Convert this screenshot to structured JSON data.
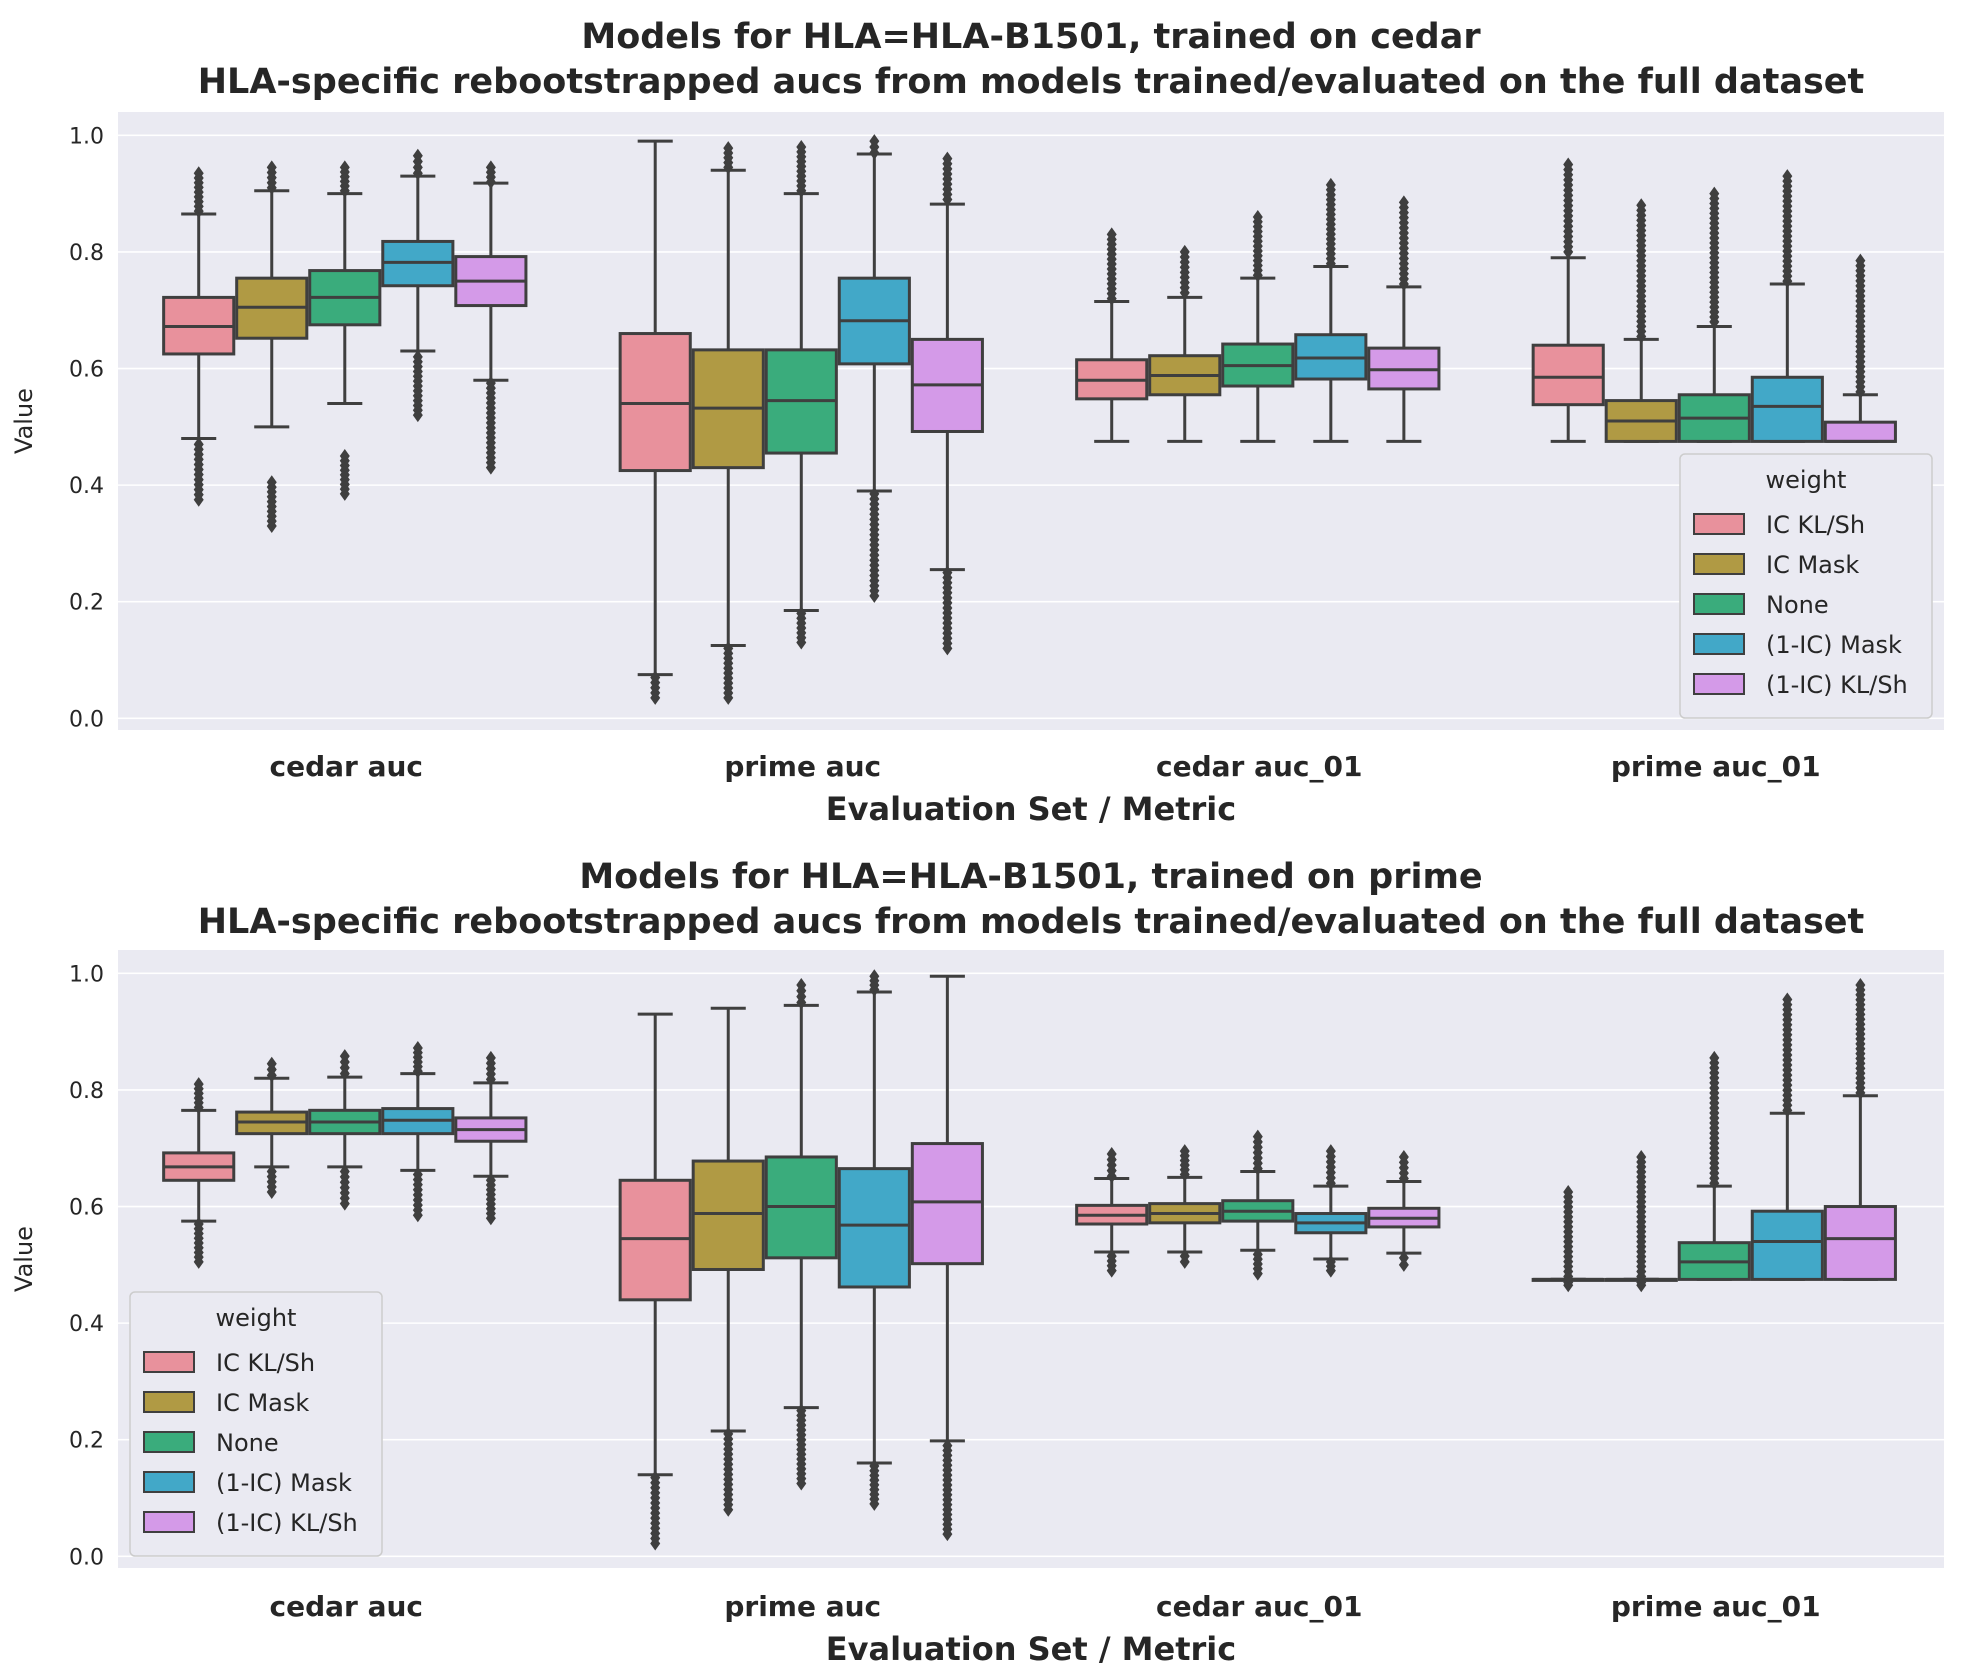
{
  "colors": {
    "background": "#eaeaf2",
    "grid": "#ffffff",
    "line": "#3f3f3f",
    "series": [
      "#e8919c",
      "#b09a44",
      "#3aac7c",
      "#42a8c8",
      "#d49ae8"
    ]
  },
  "chart_data": [
    {
      "type": "box",
      "title": "Models for HLA=HLA-B1501, trained on cedar",
      "subtitle": "HLA-specific rebootstrapped aucs from models trained/evaluated on the full dataset",
      "xlabel": "Evaluation Set / Metric",
      "ylabel": "Value",
      "ylim": [
        -0.02,
        1.04
      ],
      "yticks": [
        "0.0",
        "0.2",
        "0.4",
        "0.6",
        "0.8",
        "1.0"
      ],
      "grid": true,
      "legend": {
        "title": "weight",
        "position": "lower-right"
      },
      "categories": [
        "cedar auc",
        "prime auc",
        "cedar auc_01",
        "prime auc_01"
      ],
      "series": [
        {
          "name": "IC KL/Sh",
          "boxes": [
            {
              "whislo": 0.48,
              "q1": 0.625,
              "med": 0.672,
              "q3": 0.722,
              "whishi": 0.865,
              "fliers_low": [
                0.375,
                0.47
              ],
              "fliers_high": [
                0.87,
                0.935
              ]
            },
            {
              "whislo": 0.075,
              "q1": 0.425,
              "med": 0.54,
              "q3": 0.66,
              "whishi": 0.99,
              "fliers_low": [
                0.035,
                0.07
              ],
              "fliers_high": []
            },
            {
              "whislo": 0.475,
              "q1": 0.548,
              "med": 0.58,
              "q3": 0.615,
              "whishi": 0.715,
              "fliers_low": [],
              "fliers_high": [
                0.72,
                0.83
              ]
            },
            {
              "whislo": 0.475,
              "q1": 0.538,
              "med": 0.585,
              "q3": 0.64,
              "whishi": 0.79,
              "fliers_low": [],
              "fliers_high": [
                0.8,
                0.95
              ]
            }
          ]
        },
        {
          "name": "IC Mask",
          "boxes": [
            {
              "whislo": 0.5,
              "q1": 0.652,
              "med": 0.705,
              "q3": 0.755,
              "whishi": 0.905,
              "fliers_low": [
                0.33,
                0.405,
                0.49
              ],
              "fliers_high": [
                0.91,
                0.945
              ]
            },
            {
              "whislo": 0.125,
              "q1": 0.43,
              "med": 0.532,
              "q3": 0.632,
              "whishi": 0.94,
              "fliers_low": [
                0.035,
                0.12
              ],
              "fliers_high": [
                0.945,
                0.978
              ]
            },
            {
              "whislo": 0.475,
              "q1": 0.555,
              "med": 0.588,
              "q3": 0.622,
              "whishi": 0.722,
              "fliers_low": [],
              "fliers_high": [
                0.73,
                0.8
              ]
            },
            {
              "whislo": 0.475,
              "q1": 0.475,
              "med": 0.51,
              "q3": 0.545,
              "whishi": 0.65,
              "fliers_low": [],
              "fliers_high": [
                0.655,
                0.88
              ]
            }
          ]
        },
        {
          "name": "None",
          "boxes": [
            {
              "whislo": 0.54,
              "q1": 0.675,
              "med": 0.722,
              "q3": 0.768,
              "whishi": 0.9,
              "fliers_low": [
                0.385,
                0.45,
                0.53
              ],
              "fliers_high": [
                0.905,
                0.945
              ]
            },
            {
              "whislo": 0.185,
              "q1": 0.455,
              "med": 0.545,
              "q3": 0.632,
              "whishi": 0.9,
              "fliers_low": [
                0.13,
                0.18
              ],
              "fliers_high": [
                0.905,
                0.98
              ]
            },
            {
              "whislo": 0.475,
              "q1": 0.57,
              "med": 0.605,
              "q3": 0.642,
              "whishi": 0.755,
              "fliers_low": [],
              "fliers_high": [
                0.76,
                0.86
              ]
            },
            {
              "whislo": 0.475,
              "q1": 0.475,
              "med": 0.515,
              "q3": 0.555,
              "whishi": 0.672,
              "fliers_low": [],
              "fliers_high": [
                0.68,
                0.9
              ]
            }
          ]
        },
        {
          "name": "(1-IC) Mask",
          "boxes": [
            {
              "whislo": 0.63,
              "q1": 0.742,
              "med": 0.782,
              "q3": 0.818,
              "whishi": 0.93,
              "fliers_low": [
                0.52,
                0.62
              ],
              "fliers_high": [
                0.935,
                0.965
              ]
            },
            {
              "whislo": 0.39,
              "q1": 0.608,
              "med": 0.682,
              "q3": 0.755,
              "whishi": 0.968,
              "fliers_low": [
                0.21,
                0.385
              ],
              "fliers_high": [
                0.97,
                0.99
              ]
            },
            {
              "whislo": 0.475,
              "q1": 0.582,
              "med": 0.618,
              "q3": 0.658,
              "whishi": 0.775,
              "fliers_low": [],
              "fliers_high": [
                0.78,
                0.915
              ]
            },
            {
              "whislo": 0.475,
              "q1": 0.475,
              "med": 0.535,
              "q3": 0.585,
              "whishi": 0.745,
              "fliers_low": [],
              "fliers_high": [
                0.75,
                0.93
              ]
            }
          ]
        },
        {
          "name": "(1-IC) KL/Sh",
          "boxes": [
            {
              "whislo": 0.58,
              "q1": 0.708,
              "med": 0.75,
              "q3": 0.792,
              "whishi": 0.918,
              "fliers_low": [
                0.43,
                0.575
              ],
              "fliers_high": [
                0.92,
                0.945
              ]
            },
            {
              "whislo": 0.255,
              "q1": 0.492,
              "med": 0.572,
              "q3": 0.65,
              "whishi": 0.882,
              "fliers_low": [
                0.12,
                0.25
              ],
              "fliers_high": [
                0.89,
                0.96
              ]
            },
            {
              "whislo": 0.475,
              "q1": 0.565,
              "med": 0.598,
              "q3": 0.635,
              "whishi": 0.74,
              "fliers_low": [],
              "fliers_high": [
                0.745,
                0.885
              ]
            },
            {
              "whislo": 0.475,
              "q1": 0.475,
              "med": 0.475,
              "q3": 0.508,
              "whishi": 0.555,
              "fliers_low": [],
              "fliers_high": [
                0.56,
                0.785
              ]
            }
          ]
        }
      ]
    },
    {
      "type": "box",
      "title": "Models for HLA=HLA-B1501, trained on prime",
      "subtitle": "HLA-specific rebootstrapped aucs from models trained/evaluated on the full dataset",
      "xlabel": "Evaluation Set / Metric",
      "ylabel": "Value",
      "ylim": [
        -0.02,
        1.04
      ],
      "yticks": [
        "0.0",
        "0.2",
        "0.4",
        "0.6",
        "0.8",
        "1.0"
      ],
      "grid": true,
      "legend": {
        "title": "weight",
        "position": "lower-left"
      },
      "categories": [
        "cedar auc",
        "prime auc",
        "cedar auc_01",
        "prime auc_01"
      ],
      "series": [
        {
          "name": "IC KL/Sh",
          "boxes": [
            {
              "whislo": 0.575,
              "q1": 0.645,
              "med": 0.668,
              "q3": 0.692,
              "whishi": 0.765,
              "fliers_low": [
                0.505,
                0.57
              ],
              "fliers_high": [
                0.77,
                0.81
              ]
            },
            {
              "whislo": 0.14,
              "q1": 0.44,
              "med": 0.545,
              "q3": 0.645,
              "whishi": 0.93,
              "fliers_low": [
                0.022,
                0.135
              ],
              "fliers_high": []
            },
            {
              "whislo": 0.522,
              "q1": 0.57,
              "med": 0.585,
              "q3": 0.602,
              "whishi": 0.648,
              "fliers_low": [
                0.49,
                0.515
              ],
              "fliers_high": [
                0.652,
                0.69
              ]
            },
            {
              "whislo": 0.475,
              "q1": 0.475,
              "med": 0.475,
              "q3": 0.475,
              "whishi": 0.475,
              "fliers_low": [
                0.465,
                0.47
              ],
              "fliers_high": [
                0.48,
                0.625
              ]
            }
          ]
        },
        {
          "name": "IC Mask",
          "boxes": [
            {
              "whislo": 0.668,
              "q1": 0.725,
              "med": 0.745,
              "q3": 0.762,
              "whishi": 0.82,
              "fliers_low": [
                0.625,
                0.66
              ],
              "fliers_high": [
                0.825,
                0.845
              ]
            },
            {
              "whislo": 0.215,
              "q1": 0.492,
              "med": 0.588,
              "q3": 0.678,
              "whishi": 0.94,
              "fliers_low": [
                0.08,
                0.21
              ],
              "fliers_high": []
            },
            {
              "whislo": 0.522,
              "q1": 0.572,
              "med": 0.588,
              "q3": 0.605,
              "whishi": 0.65,
              "fliers_low": [
                0.505,
                0.515
              ],
              "fliers_high": [
                0.655,
                0.695
              ]
            },
            {
              "whislo": 0.475,
              "q1": 0.475,
              "med": 0.475,
              "q3": 0.475,
              "whishi": 0.475,
              "fliers_low": [
                0.465,
                0.47
              ],
              "fliers_high": [
                0.48,
                0.685
              ]
            }
          ]
        },
        {
          "name": "None",
          "boxes": [
            {
              "whislo": 0.668,
              "q1": 0.725,
              "med": 0.745,
              "q3": 0.765,
              "whishi": 0.822,
              "fliers_low": [
                0.605,
                0.66
              ],
              "fliers_high": [
                0.828,
                0.858
              ]
            },
            {
              "whislo": 0.255,
              "q1": 0.512,
              "med": 0.6,
              "q3": 0.685,
              "whishi": 0.945,
              "fliers_low": [
                0.125,
                0.25
              ],
              "fliers_high": [
                0.95,
                0.98
              ]
            },
            {
              "whislo": 0.525,
              "q1": 0.575,
              "med": 0.592,
              "q3": 0.61,
              "whishi": 0.66,
              "fliers_low": [
                0.485,
                0.518
              ],
              "fliers_high": [
                0.665,
                0.72
              ]
            },
            {
              "whislo": 0.475,
              "q1": 0.475,
              "med": 0.505,
              "q3": 0.538,
              "whishi": 0.635,
              "fliers_low": [],
              "fliers_high": [
                0.64,
                0.855
              ]
            }
          ]
        },
        {
          "name": "(1-IC) Mask",
          "boxes": [
            {
              "whislo": 0.662,
              "q1": 0.725,
              "med": 0.748,
              "q3": 0.768,
              "whishi": 0.828,
              "fliers_low": [
                0.585,
                0.655
              ],
              "fliers_high": [
                0.832,
                0.872
              ]
            },
            {
              "whislo": 0.16,
              "q1": 0.462,
              "med": 0.568,
              "q3": 0.665,
              "whishi": 0.968,
              "fliers_low": [
                0.09,
                0.155
              ],
              "fliers_high": [
                0.972,
                0.995
              ]
            },
            {
              "whislo": 0.51,
              "q1": 0.555,
              "med": 0.572,
              "q3": 0.588,
              "whishi": 0.635,
              "fliers_low": [
                0.49,
                0.505
              ],
              "fliers_high": [
                0.64,
                0.695
              ]
            },
            {
              "whislo": 0.475,
              "q1": 0.475,
              "med": 0.54,
              "q3": 0.592,
              "whishi": 0.76,
              "fliers_low": [],
              "fliers_high": [
                0.765,
                0.955
              ]
            }
          ]
        },
        {
          "name": "(1-IC) KL/Sh",
          "boxes": [
            {
              "whislo": 0.652,
              "q1": 0.712,
              "med": 0.732,
              "q3": 0.752,
              "whishi": 0.812,
              "fliers_low": [
                0.58,
                0.645
              ],
              "fliers_high": [
                0.818,
                0.855
              ]
            },
            {
              "whislo": 0.198,
              "q1": 0.502,
              "med": 0.608,
              "q3": 0.708,
              "whishi": 0.995,
              "fliers_low": [
                0.038,
                0.19
              ],
              "fliers_high": []
            },
            {
              "whislo": 0.52,
              "q1": 0.565,
              "med": 0.58,
              "q3": 0.597,
              "whishi": 0.643,
              "fliers_low": [
                0.5,
                0.512
              ],
              "fliers_high": [
                0.648,
                0.685
              ]
            },
            {
              "whislo": 0.475,
              "q1": 0.475,
              "med": 0.545,
              "q3": 0.6,
              "whishi": 0.79,
              "fliers_low": [],
              "fliers_high": [
                0.795,
                0.98
              ]
            }
          ]
        }
      ]
    }
  ]
}
